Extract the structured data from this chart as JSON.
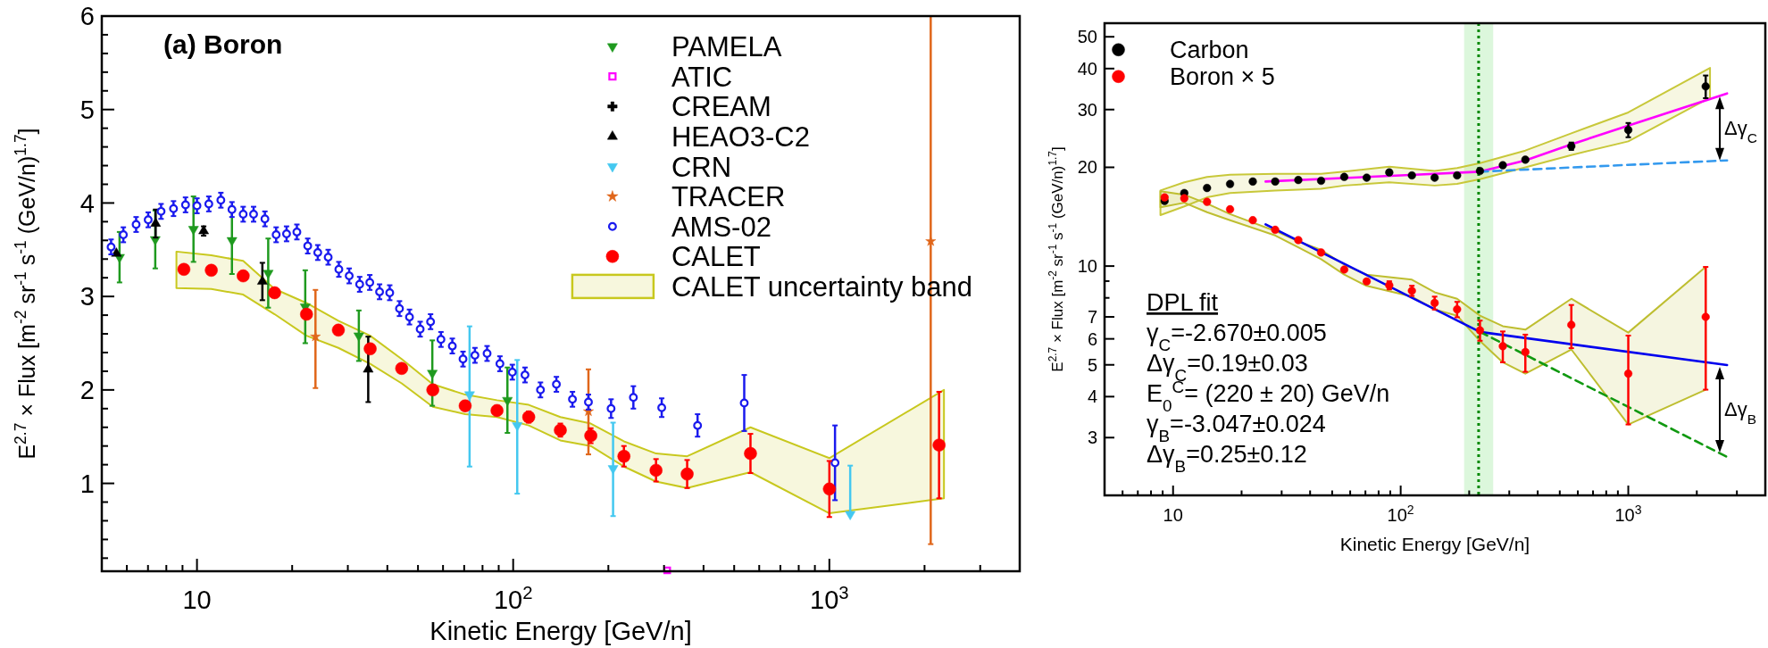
{
  "chart_data": [
    {
      "type": "scatter",
      "title": "(a) Boron",
      "xlabel": "Kinetic Energy [GeV/n]",
      "ylabel": "E$^{2.7}$ × Flux [m$^{-2}$ sr$^{-1}$ s$^{-1}$ (GeV/n)$^{1.7}$]",
      "log": "x",
      "xlim": [
        5,
        4000
      ],
      "ylim": [
        0.06,
        6
      ],
      "xticks": [
        {
          "value": 5,
          "label": null
        },
        {
          "value": 6,
          "label": null
        },
        {
          "value": 7,
          "label": null
        },
        {
          "value": 8,
          "label": null
        },
        {
          "value": 9,
          "label": null
        },
        10,
        {
          "value": 20,
          "label": null
        },
        {
          "value": 30,
          "label": null
        },
        {
          "value": 40,
          "label": null
        },
        {
          "value": 50,
          "label": null
        },
        {
          "value": 60,
          "label": null
        },
        {
          "value": 70,
          "label": null
        },
        {
          "value": 80,
          "label": null
        },
        {
          "value": 90,
          "label": null
        },
        {
          "value": 100,
          "label": "10$^{2}$"
        },
        {
          "value": 200,
          "label": null
        },
        {
          "value": 300,
          "label": null
        },
        {
          "value": 400,
          "label": null
        },
        {
          "value": 500,
          "label": null
        },
        {
          "value": 600,
          "label": null
        },
        {
          "value": 700,
          "label": null
        },
        {
          "value": 800,
          "label": null
        },
        {
          "value": 900,
          "label": null
        },
        {
          "value": 1000,
          "label": "10$^{3}$"
        },
        {
          "value": 2000,
          "label": null
        },
        {
          "value": 3000,
          "label": null
        }
      ],
      "yticks": [
        {
          "value": 0.2,
          "label": null
        },
        {
          "value": 0.4,
          "label": null
        },
        {
          "value": 0.6,
          "label": null
        },
        {
          "value": 0.8,
          "label": null
        },
        1,
        {
          "value": 1.2,
          "label": null
        },
        {
          "value": 1.4,
          "label": null
        },
        {
          "value": 1.6,
          "label": null
        },
        {
          "value": 1.8,
          "label": null
        },
        2,
        {
          "value": 2.2,
          "label": null
        },
        {
          "value": 2.4,
          "label": null
        },
        {
          "value": 2.6,
          "label": null
        },
        {
          "value": 2.8,
          "label": null
        },
        3,
        {
          "value": 3.2,
          "label": null
        },
        {
          "value": 3.4,
          "label": null
        },
        {
          "value": 3.6,
          "label": null
        },
        {
          "value": 3.8,
          "label": null
        },
        4,
        {
          "value": 4.2,
          "label": null
        },
        {
          "value": 4.4,
          "label": null
        },
        {
          "value": 4.6,
          "label": null
        },
        {
          "value": 4.8,
          "label": null
        },
        5,
        {
          "value": 5.2,
          "label": null
        },
        {
          "value": 5.4,
          "label": null
        },
        {
          "value": 5.6,
          "label": null
        },
        {
          "value": 5.8,
          "label": null
        },
        6
      ],
      "legend": "top right",
      "series": [
        {
          "name": "PAMELA",
          "marker": "triangle-down",
          "color": "#1f9a1f",
          "x": [
            5.69,
            7.38,
            9.75,
            12.9,
            16.8,
            22.0,
            32.5,
            55.5,
            95.9
          ],
          "values": [
            3.42,
            3.61,
            3.72,
            3.6,
            3.25,
            2.89,
            2.58,
            2.18,
            1.89
          ],
          "errors": [
            0.27,
            0.31,
            0.35,
            0.36,
            0.37,
            0.39,
            0.27,
            0.35,
            0.35
          ]
        },
        {
          "name": "ATIC",
          "marker": "square-open",
          "color": "#ff00ff",
          "x": [
            307
          ],
          "values": [
            0.07
          ]
        },
        {
          "name": "CREAM",
          "marker": "cross",
          "color": "#000000"
        },
        {
          "name": "HEAO3-C2",
          "marker": "triangle",
          "color": "#000000",
          "x": [
            5.56,
            7.4,
            10.5,
            16.1,
            34.8
          ],
          "values": [
            3.46,
            3.78,
            3.7,
            3.16,
            2.22
          ],
          "errors": [
            null,
            0.15,
            0.05,
            0.2,
            0.35
          ]
        },
        {
          "name": "CRN",
          "marker": "triangle-down",
          "color": "#44c8f0",
          "x": [
            72.8,
            103,
            207,
            1164
          ],
          "values": [
            1.95,
            1.62,
            1.16,
            0.67
          ],
          "errors": [
            [
              1.18,
              2.68
            ],
            [
              0.89,
              2.32
            ],
            [
              0.65,
              1.65
            ],
            [
              0.67,
              1.19
            ]
          ]
        },
        {
          "name": "TRACER",
          "marker": "star",
          "color": "#e0661a",
          "x": [
            23.7,
            173,
            2092
          ],
          "values": [
            2.57,
            1.77,
            3.59
          ],
          "errors": [
            [
              2.02,
              3.07
            ],
            [
              1.31,
              2.22
            ],
            [
              0.35,
              6
            ]
          ]
        },
        {
          "name": "AMS-02",
          "marker": "circle-open",
          "color": "#1a1aee",
          "x": [
            5.35,
            5.85,
            6.42,
            7.01,
            7.7,
            8.43,
            9.2,
            10.0,
            10.9,
            11.9,
            12.9,
            14.0,
            15.1,
            16.4,
            17.8,
            19.2,
            20.7,
            22.4,
            24.1,
            26.0,
            28.1,
            30.3,
            32.7,
            35.2,
            37.8,
            40.7,
            43.7,
            47.0,
            50.8,
            54.8,
            59.1,
            64.2,
            69.4,
            75.7,
            82.7,
            90.8,
            99.4,
            109,
            122,
            137,
            154,
            173,
            204,
            240,
            295,
            383,
            538,
            1042
          ],
          "values": [
            3.53,
            3.66,
            3.77,
            3.82,
            3.91,
            3.94,
            3.98,
            3.97,
            3.99,
            4.03,
            3.93,
            3.88,
            3.88,
            3.83,
            3.66,
            3.67,
            3.69,
            3.54,
            3.47,
            3.42,
            3.29,
            3.22,
            3.13,
            3.15,
            3.05,
            3.04,
            2.87,
            2.78,
            2.65,
            2.73,
            2.54,
            2.47,
            2.33,
            2.37,
            2.39,
            2.28,
            2.19,
            2.16,
            2.0,
            2.06,
            1.9,
            1.87,
            1.8,
            1.92,
            1.81,
            1.62,
            1.86,
            1.22
          ],
          "errors": [
            0.08,
            0.08,
            0.08,
            0.08,
            0.08,
            0.08,
            0.08,
            0.08,
            0.08,
            0.08,
            0.08,
            0.08,
            0.08,
            0.08,
            0.08,
            0.08,
            0.08,
            0.08,
            0.08,
            0.08,
            0.08,
            0.08,
            0.08,
            0.08,
            0.08,
            0.08,
            0.08,
            0.08,
            0.08,
            0.08,
            0.08,
            0.08,
            0.08,
            0.08,
            0.08,
            0.08,
            0.08,
            0.08,
            0.08,
            0.08,
            0.08,
            0.08,
            0.1,
            0.12,
            0.1,
            0.12,
            0.3,
            0.4
          ]
        },
        {
          "name": "CALET",
          "marker": "circle",
          "color": "#ff0000",
          "x": [
            9.09,
            11.1,
            14.0,
            17.6,
            22.2,
            28.0,
            35.3,
            44.4,
            55.7,
            70.5,
            88.9,
            112,
            141,
            176,
            224,
            283,
            355,
            563,
            1000,
            2223
          ],
          "values": [
            3.29,
            3.28,
            3.22,
            3.04,
            2.81,
            2.64,
            2.44,
            2.23,
            2.0,
            1.83,
            1.78,
            1.71,
            1.57,
            1.51,
            1.29,
            1.14,
            1.1,
            1.32,
            0.94,
            1.41
          ],
          "errors": [
            null,
            null,
            null,
            null,
            null,
            null,
            null,
            null,
            null,
            0.05,
            0.05,
            0.06,
            0.07,
            0.08,
            0.11,
            0.12,
            0.15,
            0.21,
            0.3,
            0.57
          ]
        },
        {
          "name": "CALET uncertainty band",
          "type": "area",
          "color": "#c8c81e",
          "x": [
            8.61,
            11.1,
            14.0,
            17.6,
            22.2,
            28.0,
            35.3,
            44.4,
            55.7,
            70.5,
            88.9,
            112,
            141,
            176,
            224,
            283,
            355,
            563,
            1000,
            2304
          ],
          "values": [
            null,
            null,
            null,
            null,
            null,
            null,
            null,
            null,
            null,
            null,
            null,
            null,
            null,
            null,
            null,
            null,
            null,
            null,
            null,
            null
          ],
          "upper": [
            3.48,
            3.44,
            3.38,
            3.08,
            2.93,
            2.74,
            2.58,
            2.33,
            2.06,
            1.95,
            1.89,
            1.84,
            1.71,
            1.64,
            1.45,
            1.32,
            1.29,
            1.6,
            1.27,
            2.0
          ],
          "lower": [
            3.09,
            3.08,
            3.02,
            2.81,
            2.58,
            2.45,
            2.28,
            2.07,
            1.82,
            1.74,
            1.71,
            1.62,
            1.46,
            1.4,
            1.18,
            1.02,
            0.95,
            1.12,
            0.68,
            0.84
          ]
        }
      ]
    },
    {
      "type": "scatter",
      "xlabel": "Kinetic Energy [GeV/n]",
      "ylabel": "E$^{2.7}$ × Flux [m$^{-2}$ sr$^{-1}$ s$^{-1}$ (GeV/n)$^{1.7}$]",
      "log": "xy",
      "xlim": [
        5,
        4000
      ],
      "ylim": [
        2,
        55
      ],
      "xticks": [
        {
          "value": 6,
          "label": null
        },
        {
          "value": 7,
          "label": null
        },
        {
          "value": 8,
          "label": null
        },
        {
          "value": 9,
          "label": null
        },
        10,
        {
          "value": 20,
          "label": null
        },
        {
          "value": 30,
          "label": null
        },
        {
          "value": 40,
          "label": null
        },
        {
          "value": 50,
          "label": null
        },
        {
          "value": 60,
          "label": null
        },
        {
          "value": 70,
          "label": null
        },
        {
          "value": 80,
          "label": null
        },
        {
          "value": 90,
          "label": null
        },
        {
          "value": 100,
          "label": "10$^{2}$"
        },
        {
          "value": 200,
          "label": null
        },
        {
          "value": 300,
          "label": null
        },
        {
          "value": 400,
          "label": null
        },
        {
          "value": 500,
          "label": null
        },
        {
          "value": 600,
          "label": null
        },
        {
          "value": 700,
          "label": null
        },
        {
          "value": 800,
          "label": null
        },
        {
          "value": 900,
          "label": null
        },
        {
          "value": 1000,
          "label": "10$^{3}$"
        },
        {
          "value": 2000,
          "label": null
        },
        {
          "value": 3000,
          "label": null
        }
      ],
      "yticks": [
        3,
        4,
        5,
        6,
        7,
        {
          "value": 8,
          "label": null
        },
        {
          "value": 9,
          "label": null
        },
        10,
        20,
        30,
        40,
        50
      ],
      "legend": "top left",
      "annotations": [
        "DPL fit",
        "γ$_{C}$=-2.670±0.005",
        "Δγ$_{C}$=0.19±0.03",
        "E$_{0}$$^{C}$= (220 ± 20) GeV/n",
        "γ$_{B}$=-3.047±0.024",
        "Δγ$_{B}$=0.25±0.12",
        "Δγ$_{C}$",
        "Δγ$_{B}$"
      ],
      "ref_lines": [
        {
          "axis": "x",
          "value": 220,
          "color": "#008800",
          "line_style": "dotted"
        }
      ],
      "bands": [
        {
          "axis": "x",
          "from": 190,
          "to": 255,
          "color": "#dcf7dc"
        }
      ],
      "series": [
        {
          "type": "area",
          "color": "#c8c83a",
          "x": [
            8.8,
            11.2,
            14.1,
            17.8,
            28.1,
            44.7,
            56.5,
            89.1,
            141,
            177,
            223,
            353,
            562,
            1000,
            2286
          ],
          "values": [
            null,
            null,
            null,
            null,
            null,
            null,
            null,
            null,
            null,
            null,
            null,
            null,
            null,
            null,
            null
          ],
          "upper": [
            17.0,
            18.0,
            18.7,
            19.0,
            19.1,
            19.1,
            19.4,
            20.1,
            19.5,
            19.9,
            20.6,
            22.5,
            25.4,
            29.4,
            40.2
          ],
          "lower": [
            14.3,
            15.2,
            16.2,
            16.7,
            17.0,
            17.2,
            17.6,
            18.0,
            17.6,
            17.8,
            18.4,
            20.0,
            21.8,
            24.0,
            32.6
          ]
        },
        {
          "type": "area",
          "color": "#bebe30",
          "x": [
            8.8,
            11.2,
            14.1,
            17.8,
            28.1,
            35.5,
            44.7,
            56.5,
            70.9,
            112,
            141,
            177,
            223,
            281,
            353,
            562,
            1000,
            2188
          ],
          "values": [
            null,
            null,
            null,
            null,
            null,
            null,
            null,
            null,
            null,
            null,
            null,
            null,
            null,
            null,
            null,
            null,
            null,
            null
          ],
          "upper": [
            16.9,
            16.5,
            15.5,
            14.4,
            12.8,
            11.9,
            11.2,
            10.1,
            9.42,
            9.09,
            8.32,
            7.95,
            7.06,
            6.56,
            6.4,
            7.95,
            6.27,
            9.94
          ],
          "lower": [
            15.1,
            15.6,
            14.6,
            13.8,
            12.4,
            11.4,
            10.5,
            9.42,
            8.7,
            8.07,
            7.38,
            7.06,
            5.91,
            5.09,
            4.7,
            5.57,
            3.29,
            4.2
          ]
        },
        {
          "type": "line",
          "color": "#ff00ff",
          "line_style": "solid",
          "x": [
            25.5,
            100,
            223,
            353,
            562,
            1000,
            2716
          ],
          "values": [
            18.1,
            18.9,
            19.4,
            21.0,
            23.5,
            26.8,
            33.6
          ]
        },
        {
          "type": "line",
          "color": "#3399ee",
          "line_style": "dashed",
          "x": [
            223,
            2716
          ],
          "values": [
            19.4,
            21.0
          ]
        },
        {
          "type": "line",
          "color": "#0000ee",
          "line_style": "solid",
          "x": [
            25.5,
            223,
            2716
          ],
          "values": [
            13.4,
            6.3,
            4.99
          ]
        },
        {
          "type": "line",
          "color": "#119911",
          "line_style": "dashed",
          "x": [
            223,
            2716
          ],
          "values": [
            6.3,
            2.62
          ]
        },
        {
          "name": "Carbon",
          "marker": "circle",
          "color": "#000000",
          "x": [
            9.18,
            11.2,
            14.1,
            17.8,
            22.4,
            28.1,
            35.5,
            44.7,
            56.5,
            70.9,
            89.1,
            112,
            141,
            177,
            223,
            281,
            353,
            562,
            1000,
            2188
          ],
          "values": [
            15.8,
            16.7,
            17.3,
            17.8,
            18.1,
            18.1,
            18.3,
            18.2,
            18.7,
            18.6,
            19.3,
            18.9,
            18.6,
            18.9,
            19.5,
            20.3,
            21.1,
            23.2,
            26.0,
            35.3
          ],
          "errors": [
            null,
            null,
            null,
            null,
            null,
            null,
            null,
            null,
            null,
            null,
            null,
            null,
            null,
            null,
            null,
            null,
            null,
            0.6,
            1.3,
            2.8
          ]
        },
        {
          "name": "Boron × 5",
          "marker": "circle",
          "color": "#ff0000",
          "x": [
            9.18,
            11.2,
            14.1,
            17.8,
            22.4,
            28.1,
            35.5,
            44.7,
            56.5,
            70.9,
            89.1,
            112,
            141,
            177,
            223,
            281,
            353,
            562,
            1000,
            2188
          ],
          "values": [
            16.2,
            16.1,
            15.7,
            14.9,
            13.8,
            12.9,
            12.0,
            11.0,
            9.76,
            8.98,
            8.74,
            8.41,
            7.72,
            7.38,
            6.37,
            5.7,
            5.47,
            6.62,
            4.7,
            7.0
          ],
          "errors": [
            null,
            null,
            null,
            null,
            null,
            null,
            null,
            null,
            null,
            null,
            0.25,
            0.3,
            0.35,
            0.4,
            0.45,
            [
              5.09,
              6.32
            ],
            [
              4.76,
              6.18
            ],
            [
              5.62,
              7.61
            ],
            [
              3.29,
              6.14
            ],
            [
              4.2,
              9.94
            ]
          ]
        }
      ]
    }
  ]
}
